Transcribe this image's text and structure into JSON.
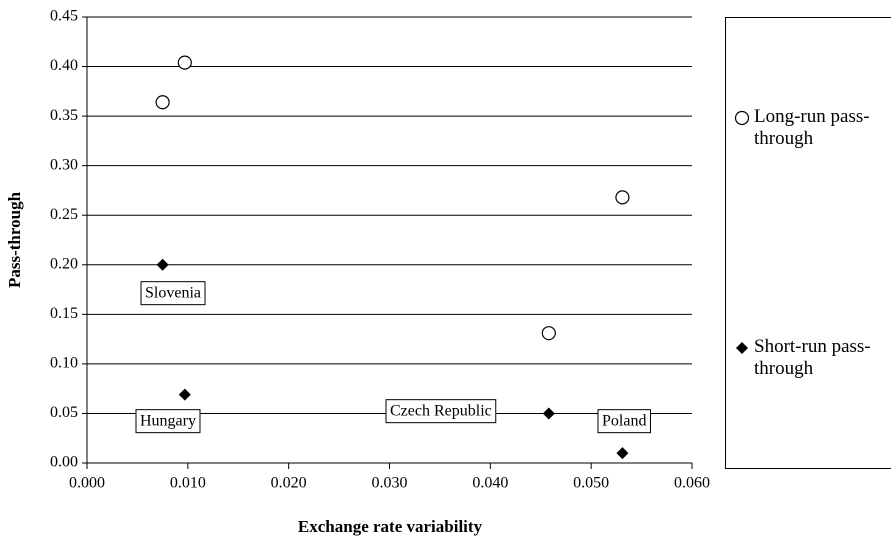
{
  "chart_data": {
    "type": "scatter",
    "x_label": "Exchange rate variability",
    "y_label": "Pass-through",
    "xlim": [
      0,
      0.06
    ],
    "ylim": [
      0,
      0.45
    ],
    "xticks": [
      {
        "value": 0,
        "label": "0.000"
      },
      {
        "value": 0.01,
        "label": "0.010"
      },
      {
        "value": 0.02,
        "label": "0.020"
      },
      {
        "value": 0.03,
        "label": "0.030"
      },
      {
        "value": 0.04,
        "label": "0.040"
      },
      {
        "value": 0.05,
        "label": "0.050"
      },
      {
        "value": 0.06,
        "label": "0.060"
      }
    ],
    "yticks": [
      {
        "value": 0,
        "label": "0.00"
      },
      0.05,
      {
        "value": 0.1,
        "label": "0.10"
      },
      0.15,
      {
        "value": 0.2,
        "label": "0.20"
      },
      0.25,
      {
        "value": 0.3,
        "label": "0.30"
      },
      0.35,
      {
        "value": 0.4,
        "label": "0.40"
      },
      0.45
    ],
    "grid": true,
    "legend": "right",
    "series": [
      {
        "name": "Long-run pass-through",
        "marker": "circle",
        "color": "#000000",
        "x": [
          0.0075,
          0.0097,
          0.0458,
          0.0531
        ],
        "values": [
          0.364,
          0.404,
          0.131,
          0.268
        ]
      },
      {
        "name": "Short-run pass-through",
        "marker": "diamond",
        "color": "#000000",
        "x": [
          0.0075,
          0.0097,
          0.0458,
          0.0531
        ],
        "values": [
          0.2,
          0.069,
          0.05,
          0.01
        ]
      }
    ],
    "annotations": [
      "Slovenia",
      "Hungary",
      "Czech Republic",
      "Poland"
    ]
  }
}
